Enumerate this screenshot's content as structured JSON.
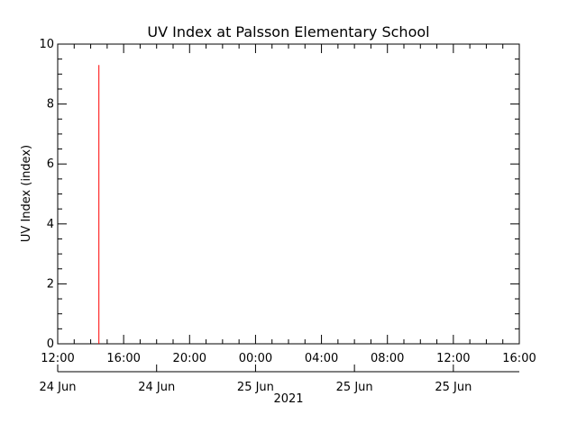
{
  "chart_data": {
    "type": "line",
    "title": "UV Index at Palsson Elementary School",
    "ylabel": "UV Index (index)",
    "xlabel": "2021",
    "ylim": [
      0,
      10
    ],
    "xlim": [
      "2021-06-24 12:00",
      "2021-06-25 16:00"
    ],
    "y_ticks": [
      "0",
      "2",
      "4",
      "6",
      "8",
      "10"
    ],
    "x_time_ticks": [
      "12:00",
      "16:00",
      "20:00",
      "00:00",
      "04:00",
      "08:00",
      "12:00",
      "16:00"
    ],
    "x_date_ticks": [
      "24 Jun",
      "24 Jun",
      "25 Jun",
      "25 Jun",
      "25 Jun"
    ],
    "grid": false,
    "series": [
      {
        "color": "#ff0000",
        "points": [
          {
            "x": "2021-06-24 14:30",
            "y": 0
          },
          {
            "x": "2021-06-24 14:30",
            "y": 9.3
          }
        ]
      }
    ]
  }
}
